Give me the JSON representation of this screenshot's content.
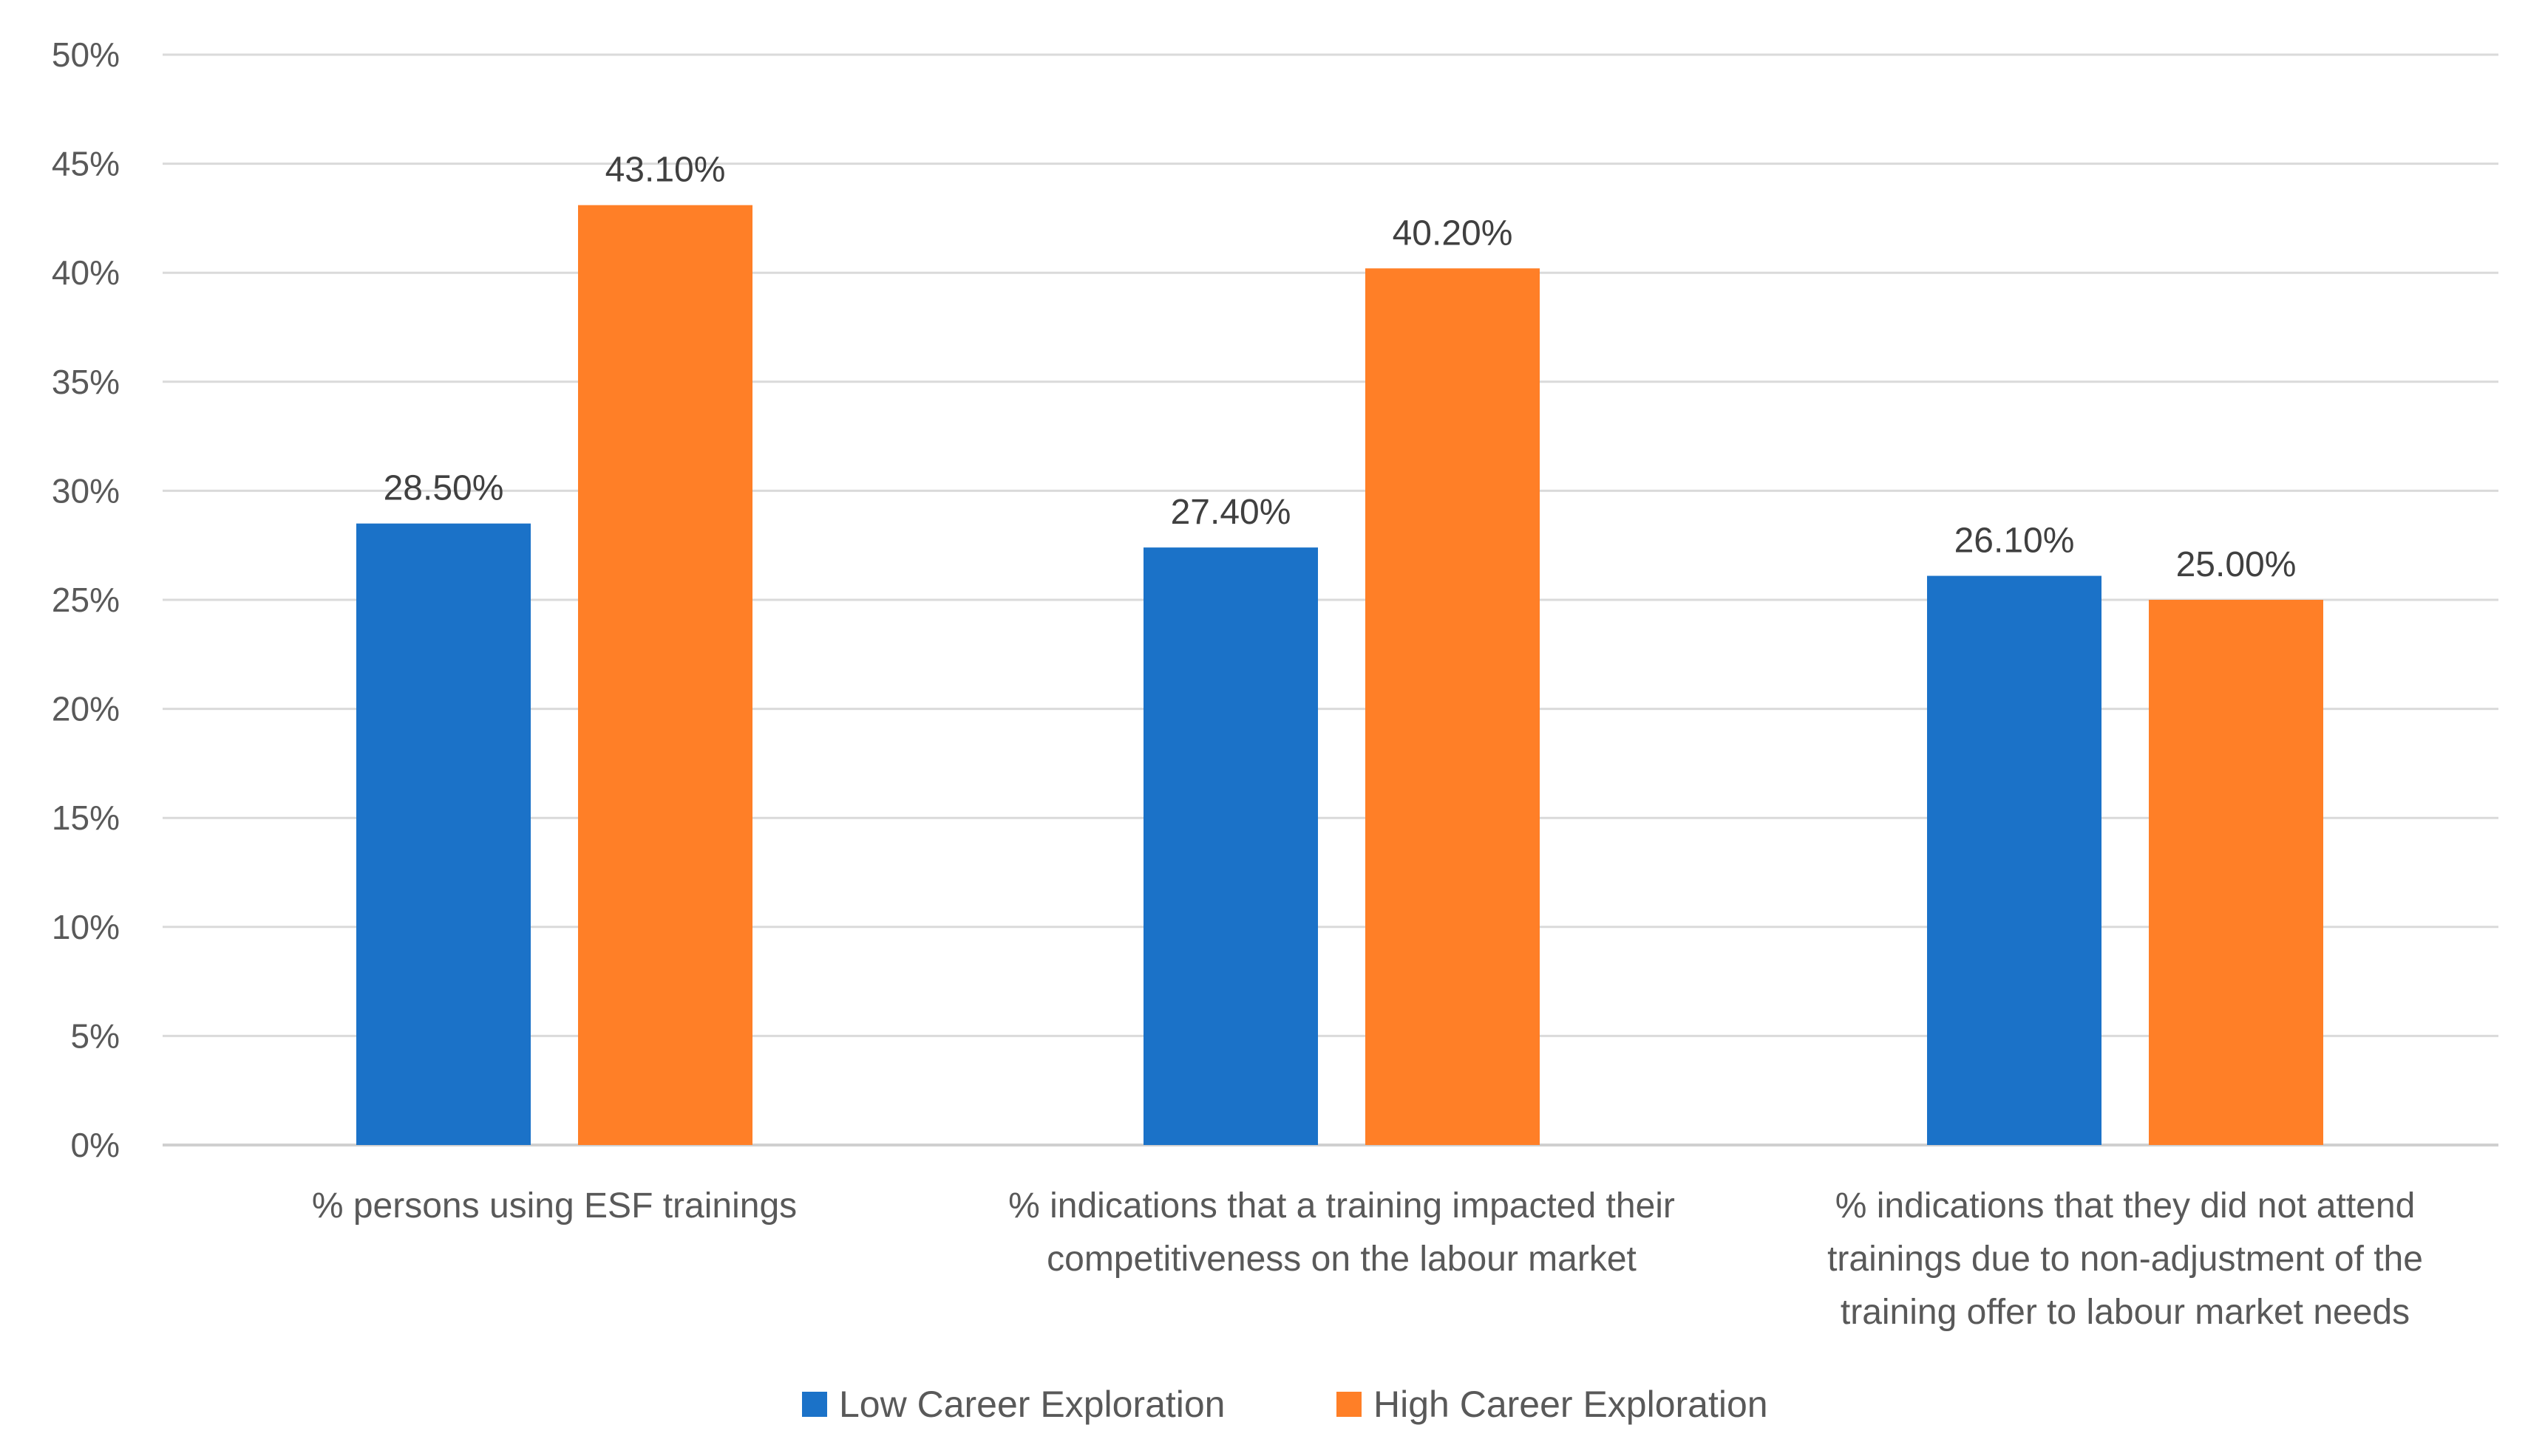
{
  "chart_data": {
    "type": "bar",
    "title": "",
    "xlabel": "",
    "ylabel": "",
    "ylim": [
      0,
      50
    ],
    "y_ticks": [
      "0%",
      "5%",
      "10%",
      "15%",
      "20%",
      "25%",
      "30%",
      "35%",
      "40%",
      "45%",
      "50%"
    ],
    "grid": true,
    "legend_position": "bottom",
    "categories": [
      [
        "% persons using ESF trainings"
      ],
      [
        "% indications that a training impacted their",
        "competitiveness on the labour market"
      ],
      [
        "% indications that they did not attend",
        "trainings due to non-adjustment of the",
        "training offer to labour market needs"
      ]
    ],
    "series": [
      {
        "name": "Low Career Exploration",
        "color": "#1B72C8",
        "values": [
          28.5,
          27.4,
          26.1
        ],
        "labels": [
          "28.50%",
          "27.40%",
          "26.10%"
        ]
      },
      {
        "name": "High Career Exploration",
        "color": "#FF7F27",
        "values": [
          43.1,
          40.2,
          25.0
        ],
        "labels": [
          "43.10%",
          "40.20%",
          "25.00%"
        ]
      }
    ]
  }
}
